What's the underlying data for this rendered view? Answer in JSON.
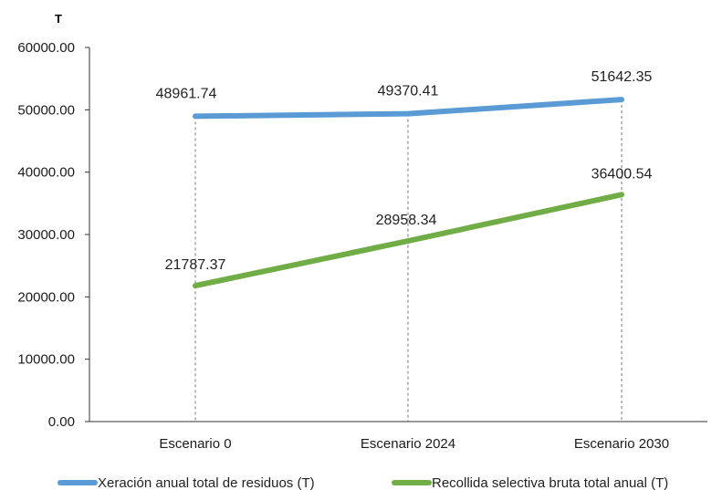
{
  "chart_data": {
    "type": "line",
    "title": "",
    "xlabel": "",
    "ylabel": "T",
    "categories": [
      "Escenario 0",
      "Escenario 2024",
      "Escenario 2030"
    ],
    "ylim": [
      0,
      60000
    ],
    "yticks": [
      "0.00",
      "10000.00",
      "20000.00",
      "30000.00",
      "40000.00",
      "50000.00",
      "60000.00"
    ],
    "grid": false,
    "drop_lines": true,
    "legend_position": "bottom",
    "series": [
      {
        "name": "Xeración anual total de residuos (T)",
        "values": [
          48961.74,
          49370.41,
          51642.35
        ],
        "labels": [
          "48961.74",
          "49370.41",
          "51642.35"
        ],
        "color": "#5b9bd5"
      },
      {
        "name": "Recollida selectiva bruta total anual (T)",
        "values": [
          21787.37,
          28958.34,
          36400.54
        ],
        "labels": [
          "21787.37",
          "28958.34",
          "36400.54"
        ],
        "color": "#70ad47"
      }
    ]
  }
}
